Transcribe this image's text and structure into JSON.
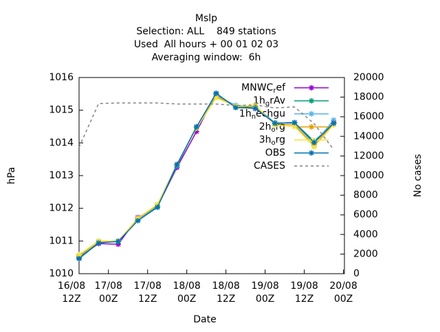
{
  "chart_data": {
    "type": "line",
    "title": [
      "Mslp",
      "Selection: ALL    849 stations",
      "Used  All hours + 00 01 02 03",
      "Averaging window:  6h"
    ],
    "xlabel": "Date",
    "ylabel": "hPa",
    "y2label": "No cases",
    "x": [
      3,
      9,
      15,
      21,
      27,
      33,
      39,
      45,
      51,
      57,
      63,
      69,
      75,
      81
    ],
    "xlim": [
      3,
      84.3
    ],
    "xticks": [
      {
        "value": 0,
        "label": "16/08\n12Z"
      },
      {
        "value": 12,
        "label": "17/08\n00Z"
      },
      {
        "value": 24,
        "label": "17/08\n12Z"
      },
      {
        "value": 36,
        "label": "18/08\n00Z"
      },
      {
        "value": 48,
        "label": "18/08\n12Z"
      },
      {
        "value": 60,
        "label": "19/08\n00Z"
      },
      {
        "value": 72,
        "label": "19/08\n12Z"
      },
      {
        "value": 84,
        "label": "20/08\n00Z"
      }
    ],
    "ylim": [
      1010,
      1016
    ],
    "yticks": [
      1010,
      1011,
      1012,
      1013,
      1014,
      1015,
      1016
    ],
    "y2lim": [
      0,
      20000
    ],
    "y2ticks": [
      0,
      2000,
      4000,
      6000,
      8000,
      10000,
      12000,
      14000,
      16000,
      18000,
      20000
    ],
    "legend": "upper right",
    "series": [
      {
        "name": "MNWC_ref",
        "color": "#9400d3",
        "values": [
          1010.5,
          1010.92,
          1010.9,
          1011.72,
          1012.05,
          1013.25,
          1014.35,
          1015.5,
          1015.1,
          1015.05,
          1014.6,
          1014.62,
          1014.0,
          1014.62
        ]
      },
      {
        "name": "1h_grAv",
        "color": "#009e73",
        "values": [
          1010.48,
          1010.95,
          1010.98,
          1011.65,
          1012.05,
          1013.3,
          1014.48,
          1015.5,
          1015.1,
          1015.1,
          1014.6,
          1014.62,
          1014.05,
          1014.6
        ]
      },
      {
        "name": "1h_nechgu",
        "color": "#56b4e9",
        "values": [
          1010.52,
          1011.0,
          1011.0,
          1011.65,
          1012.08,
          1013.32,
          1014.5,
          1015.45,
          1015.15,
          1015.12,
          1014.62,
          1014.6,
          1013.98,
          1014.7
        ]
      },
      {
        "name": "2h_org",
        "color": "#e69f00",
        "values": [
          1010.55,
          1010.98,
          1011.0,
          1011.68,
          1012.1,
          1013.35,
          1014.45,
          1015.42,
          1015.12,
          1015.12,
          1014.58,
          1014.55,
          1013.92,
          1014.6
        ]
      },
      {
        "name": "3h_org",
        "color": "#f0e442",
        "values": [
          1010.58,
          1011.0,
          1011.0,
          1011.7,
          1012.12,
          1013.35,
          1014.45,
          1015.38,
          1015.12,
          1015.15,
          1014.55,
          1014.5,
          1013.88,
          1014.55
        ]
      },
      {
        "name": "OBS",
        "color": "#0072b2",
        "values": [
          1010.46,
          1010.94,
          1010.99,
          1011.62,
          1012.03,
          1013.34,
          1014.49,
          1015.52,
          1015.08,
          1015.06,
          1014.6,
          1014.62,
          1014.01,
          1014.6
        ]
      },
      {
        "name": "CASES",
        "color": "#808080",
        "axis": "y2",
        "dashed": true,
        "values": [
          12900,
          17350,
          17400,
          17400,
          17400,
          17300,
          17300,
          17300,
          17150,
          17200,
          16900,
          17000,
          15300,
          12650
        ]
      }
    ]
  }
}
